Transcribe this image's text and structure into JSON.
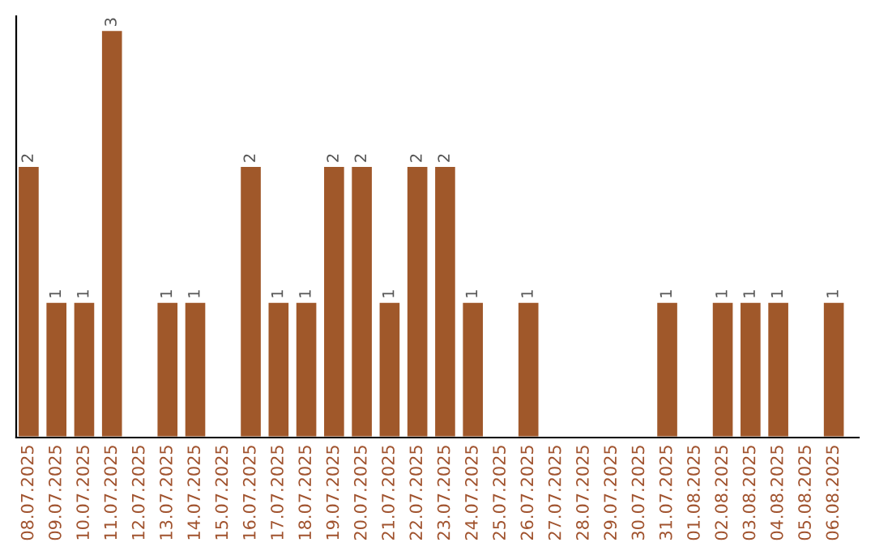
{
  "chart_data": {
    "type": "bar",
    "categories": [
      "08.07.2025",
      "09.07.2025",
      "10.07.2025",
      "11.07.2025",
      "12.07.2025",
      "13.07.2025",
      "14.07.2025",
      "15.07.2025",
      "16.07.2025",
      "17.07.2025",
      "18.07.2025",
      "19.07.2025",
      "20.07.2025",
      "21.07.2025",
      "22.07.2025",
      "23.07.2025",
      "24.07.2025",
      "25.07.2025",
      "26.07.2025",
      "27.07.2025",
      "28.07.2025",
      "29.07.2025",
      "30.07.2025",
      "31.07.2025",
      "01.08.2025",
      "02.08.2025",
      "03.08.2025",
      "04.08.2025",
      "05.08.2025",
      "06.08.2025"
    ],
    "values": [
      2,
      1,
      1,
      3,
      null,
      1,
      1,
      null,
      2,
      1,
      1,
      2,
      2,
      1,
      2,
      2,
      1,
      null,
      1,
      null,
      null,
      null,
      null,
      1,
      null,
      1,
      1,
      1,
      null,
      1
    ],
    "value_labels": [
      "2",
      "1",
      "1",
      "3",
      null,
      "1",
      "1",
      null,
      "2",
      "1",
      "1",
      "2",
      "2",
      "1",
      "2",
      "2",
      "1",
      null,
      "1",
      null,
      null,
      null,
      null,
      "1",
      null,
      "1",
      "1",
      "1",
      null,
      "1"
    ],
    "color": "#a0582a",
    "ylim": [
      0,
      3.1
    ],
    "tick_labels": "x",
    "grid": false
  }
}
